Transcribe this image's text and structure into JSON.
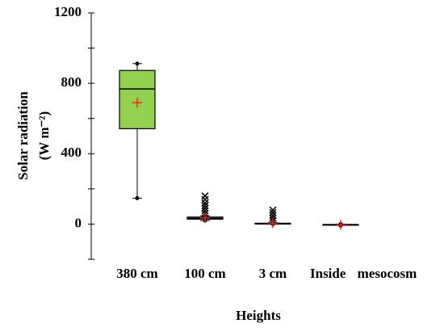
{
  "chart_data": {
    "type": "box",
    "y_label": "Solar radiation",
    "y_unit_label": "(W m⁻²)",
    "x_label": "Heights",
    "ylim": [
      -200,
      1200
    ],
    "yticks": [
      0,
      400,
      800,
      1200
    ],
    "y_minor_ticks": [
      -200,
      200,
      600,
      1000
    ],
    "mean_color": "#ff2020",
    "boxes": [
      {
        "category": "380 cm",
        "min": 147,
        "q1": 542,
        "median": 768,
        "q3": 873,
        "max": 912,
        "mean": 690,
        "outliers": [],
        "fill": "#92d050"
      },
      {
        "category": "100 cm",
        "min": 20,
        "q1": 28,
        "median": 33,
        "q3": 40,
        "max": 48,
        "mean": 35,
        "outliers": [
          60,
          75,
          90,
          105,
          120,
          140,
          160
        ],
        "fill": "none"
      },
      {
        "category": "3 cm",
        "min": 0,
        "q1": 0,
        "median": 2,
        "q3": 5,
        "max": 10,
        "mean": 5,
        "outliers": [
          20,
          35,
          50,
          65,
          80
        ],
        "fill": "none"
      },
      {
        "category": "Inside mesocosm",
        "min": -8,
        "q1": -5,
        "median": -4,
        "q3": -2,
        "max": 0,
        "mean": -5,
        "outliers": [],
        "fill": "none"
      }
    ]
  }
}
